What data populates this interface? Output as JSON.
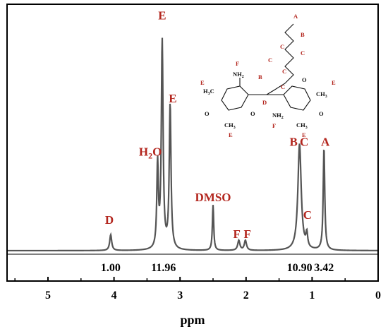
{
  "chart_data": {
    "type": "line",
    "xlabel": "ppm",
    "xlim": [
      5.6,
      0
    ],
    "x_ticks": [
      "5",
      "4",
      "3",
      "2",
      "1",
      "0"
    ],
    "x_tick_values": [
      5,
      4,
      3,
      2,
      1,
      0
    ],
    "baseline": 0,
    "peaks": [
      {
        "x": 4.05,
        "y": 0.16,
        "w": 0.018
      },
      {
        "x": 3.34,
        "y": 0.85,
        "w": 0.014
      },
      {
        "x": 3.27,
        "y": 2.1,
        "w": 0.016
      },
      {
        "x": 3.15,
        "y": 1.46,
        "w": 0.016
      },
      {
        "x": 2.5,
        "y": 0.46,
        "w": 0.012
      },
      {
        "x": 2.11,
        "y": 0.1,
        "w": 0.02
      },
      {
        "x": 2.01,
        "y": 0.1,
        "w": 0.02
      },
      {
        "x": 1.19,
        "y": 1.08,
        "w": 0.03
      },
      {
        "x": 1.08,
        "y": 0.14,
        "w": 0.015
      },
      {
        "x": 0.82,
        "y": 1.04,
        "w": 0.014
      }
    ],
    "peak_labels": [
      {
        "text": "D",
        "x": 4.07,
        "y": 0.27
      },
      {
        "text": "E",
        "x": 3.27,
        "y": 2.34
      },
      {
        "text": "E",
        "x": 3.11,
        "y": 1.5
      },
      {
        "text": "DMSO",
        "x": 2.5,
        "y": 0.5
      },
      {
        "text": "F",
        "x": 2.14,
        "y": 0.13
      },
      {
        "text": "F",
        "x": 1.98,
        "y": 0.13
      },
      {
        "text": "B",
        "x": 1.28,
        "y": 1.06
      },
      {
        "text": "C",
        "x": 1.12,
        "y": 1.06
      },
      {
        "text": "C",
        "x": 1.07,
        "y": 0.32
      },
      {
        "text": "A",
        "x": 0.8,
        "y": 1.06
      }
    ],
    "h2o_label": {
      "main": "H",
      "sub": "2",
      "tail": "O",
      "x": 3.45,
      "y": 0.96
    },
    "integrals": [
      {
        "text": "1.00",
        "x": 4.05
      },
      {
        "text": "11.96",
        "x": 3.25
      },
      {
        "text": "10.90",
        "x": 1.19
      },
      {
        "text": "3.42",
        "x": 0.82
      }
    ]
  },
  "structure_labels": {
    "chain": [
      "A",
      "B",
      "C",
      "C",
      "C",
      "C",
      "B",
      "C"
    ],
    "chain_colors": "#b3261e",
    "left_ring": {
      "nh2": "NH",
      "nh2_sub": "2",
      "ch3_top": "H",
      "ch3_top_sub": "3",
      "ch3_top_c": "C",
      "o1": "O",
      "o2": "O",
      "n_ch3": "CH",
      "n_ch3_sub": "3",
      "e1": "E",
      "e2": "E",
      "f": "F"
    },
    "right_ring": {
      "nh2": "H",
      "nh2_pre": "N",
      "nh2_sub": "2",
      "ch3": "CH",
      "ch3_sub": "3",
      "o1": "O",
      "o2": "O",
      "e1": "E",
      "e2": "E",
      "f": "F"
    },
    "d_label": "D"
  },
  "colors": {
    "spectrum": "#555555",
    "labels": "#b3261e"
  }
}
